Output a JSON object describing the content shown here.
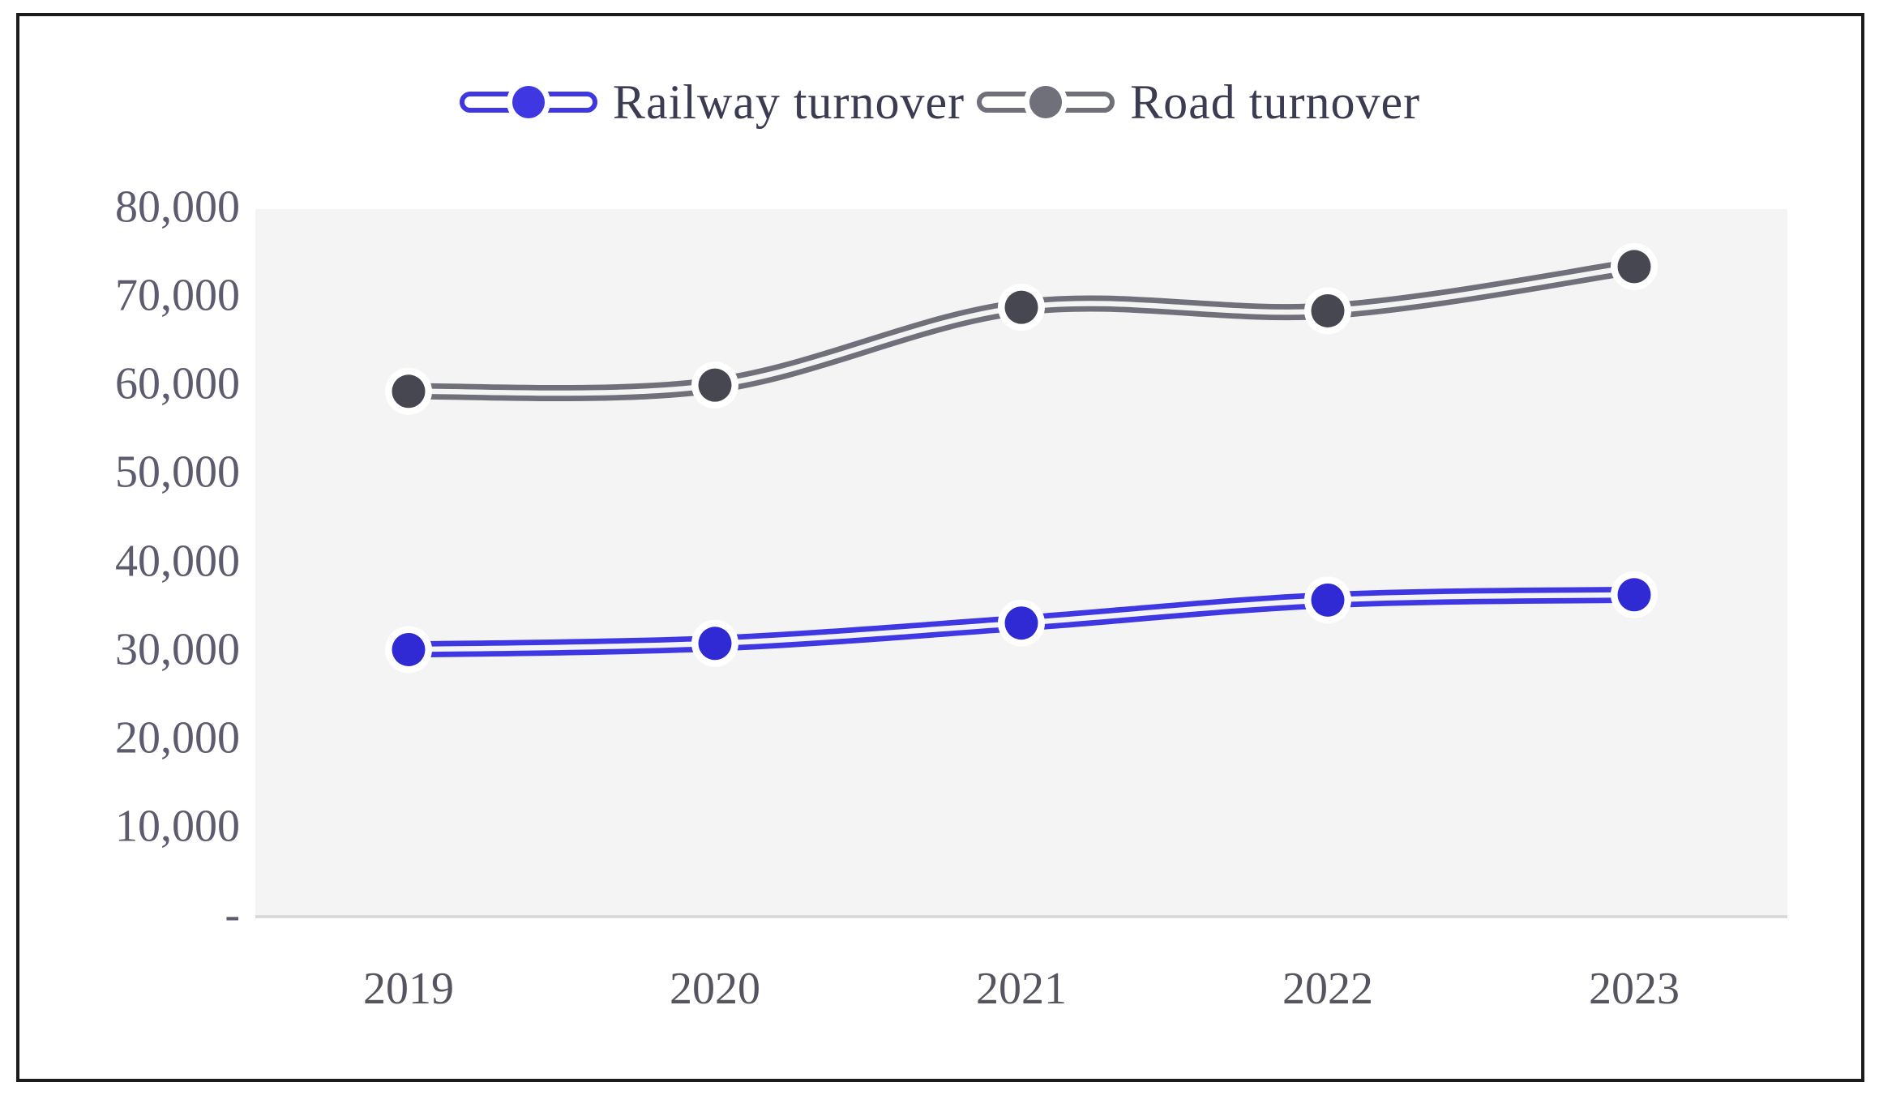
{
  "chart_data": {
    "type": "line",
    "title": "",
    "categories": [
      "2019",
      "2020",
      "2021",
      "2022",
      "2023"
    ],
    "series": [
      {
        "name": "Railway turnover",
        "color": "#3f37e2",
        "dot_color": "#2f2ad4",
        "values": [
          30200,
          30900,
          33200,
          35800,
          36400
        ]
      },
      {
        "name": "Road turnover",
        "color": "#70707a",
        "dot_color": "#474752",
        "values": [
          59400,
          60100,
          68900,
          68500,
          73500
        ]
      }
    ],
    "y_axis": {
      "min": 0,
      "max": 80000,
      "ticks": [
        {
          "label": "-",
          "value": 0
        },
        {
          "label": "10,000",
          "value": 10000
        },
        {
          "label": "20,000",
          "value": 20000
        },
        {
          "label": "30,000",
          "value": 30000
        },
        {
          "label": "40,000",
          "value": 40000
        },
        {
          "label": "50,000",
          "value": 50000
        },
        {
          "label": "60,000",
          "value": 60000
        },
        {
          "label": "70,000",
          "value": 70000
        },
        {
          "label": "80,000",
          "value": 80000
        }
      ]
    },
    "xlabel": "",
    "ylabel": "",
    "grid": false,
    "legend_position": "top",
    "smoothed_lines": true,
    "plot_background": "#f4f4f4",
    "axis_line_color": "#d6d6d6",
    "tick_label_color": "#5c5c6e",
    "legend_text_color": "#3b3b52"
  }
}
